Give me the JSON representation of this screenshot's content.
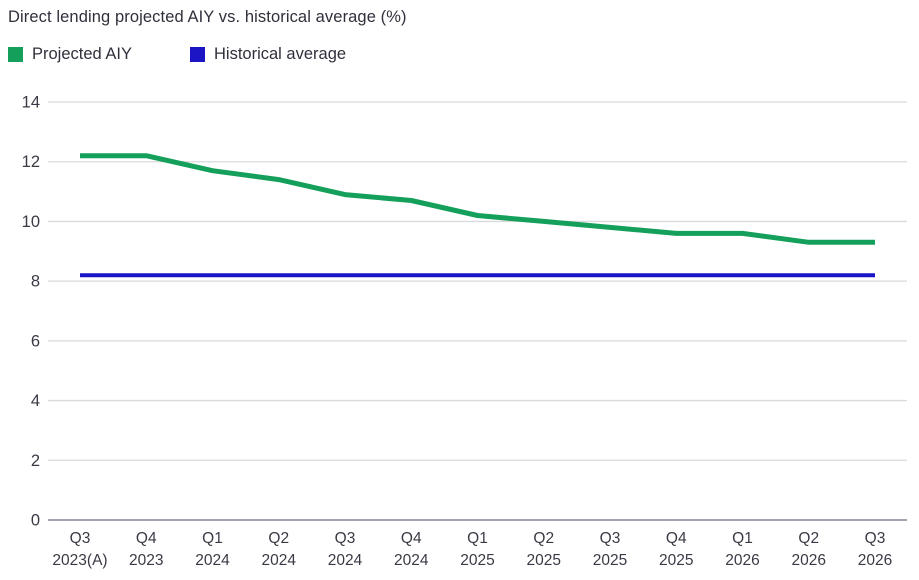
{
  "header": {
    "title": "Direct lending projected AIY vs. historical average (%)"
  },
  "legend": {
    "items": [
      {
        "label": "Projected AIY",
        "color": "#14a05a"
      },
      {
        "label": "Historical average",
        "color": "#1b15c5"
      }
    ]
  },
  "chart_data": {
    "type": "line",
    "title": "Direct lending projected AIY vs. historical average (%)",
    "categories": [
      {
        "line1": "Q3",
        "line2": "2023(A)"
      },
      {
        "line1": "Q4",
        "line2": "2023"
      },
      {
        "line1": "Q1",
        "line2": "2024"
      },
      {
        "line1": "Q2",
        "line2": "2024"
      },
      {
        "line1": "Q3",
        "line2": "2024"
      },
      {
        "line1": "Q4",
        "line2": "2024"
      },
      {
        "line1": "Q1",
        "line2": "2025"
      },
      {
        "line1": "Q2",
        "line2": "2025"
      },
      {
        "line1": "Q3",
        "line2": "2025"
      },
      {
        "line1": "Q4",
        "line2": "2025"
      },
      {
        "line1": "Q1",
        "line2": "2026"
      },
      {
        "line1": "Q2",
        "line2": "2026"
      },
      {
        "line1": "Q3",
        "line2": "2026"
      }
    ],
    "series": [
      {
        "name": "Projected AIY",
        "color": "#14a05a",
        "values": [
          12.2,
          12.2,
          11.7,
          11.4,
          10.9,
          10.7,
          10.2,
          10.0,
          9.8,
          9.6,
          9.6,
          9.3,
          9.3
        ]
      },
      {
        "name": "Historical average",
        "color": "#1b15c5",
        "values": [
          8.2,
          8.2,
          8.2,
          8.2,
          8.2,
          8.2,
          8.2,
          8.2,
          8.2,
          8.2,
          8.2,
          8.2,
          8.2
        ]
      }
    ],
    "ylabel": "",
    "xlabel": "",
    "ylim": [
      0,
      14
    ],
    "yticks": [
      0,
      2,
      4,
      6,
      8,
      10,
      12,
      14
    ],
    "grid": true,
    "legend_position": "top-left"
  },
  "colors": {
    "text": "#30303c",
    "tick_text": "#3a3a46",
    "gridline": "#d9d9de",
    "zero_axis": "#a3a3ad",
    "background": "#ffffff"
  }
}
